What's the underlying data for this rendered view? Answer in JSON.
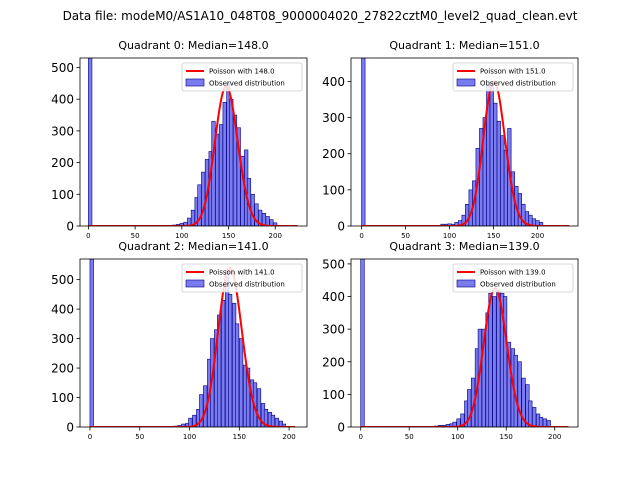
{
  "suptitle": "Data file: modeM0/AS1A10_048T08_9000004020_27822cztM0_level2_quad_clean.evt",
  "colors": {
    "bar_fill": "#7b7bf0",
    "bar_edge": "#000080",
    "curve": "#ff0000",
    "axis": "#000000"
  },
  "legend": {
    "curve_label_prefix": "Poisson with ",
    "hist_label": "Observed distribution"
  },
  "chart_data": [
    {
      "type": "bar",
      "title": "Quadrant 0: Median=148.0",
      "xlim": [
        -9,
        234
      ],
      "ylim": [
        0,
        530
      ],
      "xticks": [
        0,
        50,
        100,
        150,
        200
      ],
      "yticks": [
        0,
        100,
        200,
        300,
        400,
        500
      ],
      "bin_width": 3.8,
      "bins": [
        [
          0,
          530
        ],
        [
          83,
          1
        ],
        [
          87,
          2
        ],
        [
          90,
          3
        ],
        [
          94,
          5
        ],
        [
          98,
          8
        ],
        [
          102,
          12
        ],
        [
          106,
          25
        ],
        [
          110,
          50
        ],
        [
          114,
          90
        ],
        [
          117,
          130
        ],
        [
          121,
          170
        ],
        [
          125,
          210
        ],
        [
          129,
          235
        ],
        [
          132,
          330
        ],
        [
          136,
          290
        ],
        [
          140,
          320
        ],
        [
          144,
          390
        ],
        [
          148,
          450
        ],
        [
          151,
          400
        ],
        [
          155,
          350
        ],
        [
          159,
          310
        ],
        [
          163,
          220
        ],
        [
          167,
          240
        ],
        [
          170,
          150
        ],
        [
          174,
          100
        ],
        [
          178,
          70
        ],
        [
          182,
          50
        ],
        [
          186,
          40
        ],
        [
          190,
          30
        ],
        [
          194,
          20
        ],
        [
          198,
          10
        ]
      ],
      "poisson_mean": 148.0,
      "curve_label": "Poisson with 148.0",
      "curve_range": [
        0,
        224
      ],
      "curve_peak": 440
    },
    {
      "type": "bar",
      "title": "Quadrant 1: Median=151.0",
      "xlim": [
        -12,
        246
      ],
      "ylim": [
        0,
        465
      ],
      "xticks": [
        0,
        50,
        100,
        150,
        200
      ],
      "yticks": [
        0,
        100,
        200,
        300,
        400
      ],
      "bin_width": 4.0,
      "bins": [
        [
          0,
          465
        ],
        [
          90,
          5
        ],
        [
          94,
          5
        ],
        [
          98,
          6
        ],
        [
          102,
          5
        ],
        [
          106,
          10
        ],
        [
          110,
          15
        ],
        [
          114,
          30
        ],
        [
          118,
          60
        ],
        [
          122,
          100
        ],
        [
          126,
          125
        ],
        [
          130,
          215
        ],
        [
          134,
          270
        ],
        [
          138,
          300
        ],
        [
          142,
          390
        ],
        [
          146,
          400
        ],
        [
          150,
          340
        ],
        [
          154,
          290
        ],
        [
          158,
          250
        ],
        [
          162,
          210
        ],
        [
          166,
          270
        ],
        [
          170,
          150
        ],
        [
          174,
          110
        ],
        [
          178,
          90
        ],
        [
          182,
          60
        ],
        [
          186,
          40
        ],
        [
          190,
          30
        ],
        [
          194,
          20
        ],
        [
          198,
          15
        ],
        [
          202,
          10
        ]
      ],
      "poisson_mean": 151.0,
      "curve_label": "Poisson with 151.0",
      "curve_range": [
        0,
        236
      ],
      "curve_peak": 400
    },
    {
      "type": "bar",
      "title": "Quadrant 2: Median=141.0",
      "xlim": [
        -10,
        218
      ],
      "ylim": [
        0,
        570
      ],
      "xticks": [
        0,
        50,
        100,
        150,
        200
      ],
      "yticks": [
        0,
        100,
        200,
        300,
        400,
        500
      ],
      "bin_width": 3.6,
      "bins": [
        [
          0,
          570
        ],
        [
          80,
          2
        ],
        [
          84,
          3
        ],
        [
          88,
          5
        ],
        [
          92,
          10
        ],
        [
          96,
          12
        ],
        [
          99,
          30
        ],
        [
          103,
          40
        ],
        [
          107,
          60
        ],
        [
          110,
          110
        ],
        [
          114,
          140
        ],
        [
          118,
          230
        ],
        [
          121,
          300
        ],
        [
          125,
          330
        ],
        [
          128,
          380
        ],
        [
          132,
          430
        ],
        [
          136,
          530
        ],
        [
          139,
          450
        ],
        [
          143,
          420
        ],
        [
          146,
          350
        ],
        [
          150,
          300
        ],
        [
          154,
          210
        ],
        [
          157,
          200
        ],
        [
          161,
          160
        ],
        [
          164,
          150
        ],
        [
          168,
          130
        ],
        [
          172,
          80
        ],
        [
          175,
          60
        ],
        [
          179,
          50
        ],
        [
          182,
          40
        ],
        [
          186,
          30
        ],
        [
          190,
          20
        ],
        [
          193,
          10
        ]
      ],
      "poisson_mean": 141.0,
      "curve_label": "Poisson with 141.0",
      "curve_range": [
        0,
        206
      ],
      "curve_peak": 540
    },
    {
      "type": "bar",
      "title": "Quadrant 3: Median=139.0",
      "xlim": [
        -10,
        224
      ],
      "ylim": [
        0,
        515
      ],
      "xticks": [
        0,
        50,
        100,
        150,
        200
      ],
      "yticks": [
        0,
        100,
        200,
        300,
        400,
        500
      ],
      "bin_width": 3.7,
      "bins": [
        [
          0,
          515
        ],
        [
          76,
          3
        ],
        [
          80,
          5
        ],
        [
          84,
          5
        ],
        [
          88,
          8
        ],
        [
          92,
          10
        ],
        [
          95,
          15
        ],
        [
          99,
          25
        ],
        [
          103,
          40
        ],
        [
          107,
          80
        ],
        [
          110,
          115
        ],
        [
          114,
          150
        ],
        [
          118,
          240
        ],
        [
          121,
          300
        ],
        [
          125,
          300
        ],
        [
          129,
          350
        ],
        [
          132,
          410
        ],
        [
          136,
          400
        ],
        [
          140,
          420
        ],
        [
          144,
          410
        ],
        [
          147,
          400
        ],
        [
          151,
          260
        ],
        [
          155,
          240
        ],
        [
          158,
          220
        ],
        [
          162,
          200
        ],
        [
          166,
          150
        ],
        [
          170,
          130
        ],
        [
          173,
          80
        ],
        [
          177,
          60
        ],
        [
          181,
          40
        ],
        [
          184,
          30
        ],
        [
          188,
          25
        ],
        [
          192,
          20
        ]
      ],
      "poisson_mean": 139.0,
      "curve_label": "Poisson with 139.0",
      "curve_range": [
        0,
        214
      ],
      "curve_peak": 425
    }
  ]
}
